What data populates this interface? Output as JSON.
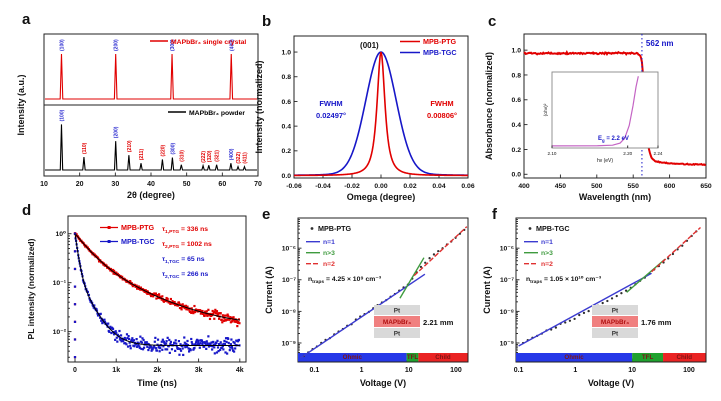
{
  "figure": {
    "background": "#ffffff",
    "accent_red": "#e10000",
    "accent_blue": "#1717c8",
    "green": "#2e9b3a",
    "scatter_color": "#303030"
  },
  "chart_data": [
    {
      "id": "a",
      "panel_label": "a",
      "type": "line",
      "subtype": "xrd",
      "xlabel": "2θ (degree)",
      "ylabel": "Intensity (a.u.)",
      "xlim": [
        10,
        70
      ],
      "xticks": [
        10,
        20,
        30,
        40,
        50,
        60,
        70
      ],
      "series": [
        {
          "name": "MAPbBr₃ single crystal",
          "color": "#e10000",
          "label_color": "#2a2ad0",
          "peaks": [
            {
              "x": 14.9,
              "h": 1.0,
              "label": "(100)"
            },
            {
              "x": 30.1,
              "h": 1.0,
              "label": "(200)"
            },
            {
              "x": 45.9,
              "h": 1.0,
              "label": "(300)"
            },
            {
              "x": 62.5,
              "h": 1.0,
              "label": "(400)"
            }
          ]
        },
        {
          "name": "MAPbBr₃ powder",
          "color": "#000000",
          "peaks": [
            {
              "x": 14.9,
              "h": 0.95,
              "label": "(100)",
              "lc": "#2a2ad0"
            },
            {
              "x": 21.2,
              "h": 0.27,
              "label": "(110)",
              "lc": "#e10000"
            },
            {
              "x": 30.1,
              "h": 0.6,
              "label": "(200)",
              "lc": "#2a2ad0"
            },
            {
              "x": 33.8,
              "h": 0.31,
              "label": "(210)",
              "lc": "#e10000"
            },
            {
              "x": 37.2,
              "h": 0.14,
              "label": "(211)",
              "lc": "#e10000"
            },
            {
              "x": 43.2,
              "h": 0.22,
              "label": "(220)",
              "lc": "#e10000"
            },
            {
              "x": 46.0,
              "h": 0.26,
              "label": "(300)",
              "lc": "#2a2ad0"
            },
            {
              "x": 48.5,
              "h": 0.11,
              "label": "(310)",
              "lc": "#e10000"
            },
            {
              "x": 54.6,
              "h": 0.09,
              "label": "(222)",
              "lc": "#e10000"
            },
            {
              "x": 56.2,
              "h": 0.1,
              "label": "(320)",
              "lc": "#e10000"
            },
            {
              "x": 58.4,
              "h": 0.11,
              "label": "(321)",
              "lc": "#e10000"
            },
            {
              "x": 62.4,
              "h": 0.14,
              "label": "(400)",
              "lc": "#2a2ad0"
            },
            {
              "x": 64.4,
              "h": 0.07,
              "label": "(322)",
              "lc": "#e10000"
            },
            {
              "x": 66.2,
              "h": 0.07,
              "label": "(411)",
              "lc": "#e10000"
            }
          ]
        }
      ]
    },
    {
      "id": "b",
      "panel_label": "b",
      "type": "line",
      "subtype": "rocking",
      "xlabel": "Omega (degree)",
      "ylabel": "Intensity (normalized)",
      "xlim": [
        -0.06,
        0.06
      ],
      "xticks": [
        -0.06,
        -0.04,
        -0.02,
        0.0,
        0.02,
        0.04,
        0.06
      ],
      "xtick_labels": [
        "-0.06",
        "-0.04",
        "-0.02",
        "0.00",
        "0.02",
        "0.04",
        "0.06"
      ],
      "yticks": [
        0.0,
        0.2,
        0.4,
        0.6,
        0.8,
        1.0
      ],
      "ytick_labels": [
        "0.0",
        "0.2",
        "0.4",
        "0.6",
        "0.8",
        "1.0"
      ],
      "peak_label": "(001)",
      "series": [
        {
          "name": "MPB-TGC",
          "color": "#1717c8",
          "fwhm": 0.02497,
          "shape": "gauss"
        },
        {
          "name": "MPB-PTG",
          "color": "#e10000",
          "fwhm": 0.00806,
          "shape": "lorentz"
        }
      ],
      "legend_order": [
        "MPB-PTG",
        "MPB-TGC"
      ],
      "legend_colors": [
        "#e10000",
        "#1717c8"
      ],
      "annotations": [
        {
          "lines": [
            "FWHM",
            "0.02497°"
          ],
          "color": "#1717c8",
          "side": "left"
        },
        {
          "lines": [
            "FWHM",
            "0.00806°"
          ],
          "color": "#e10000",
          "side": "right"
        }
      ]
    },
    {
      "id": "c",
      "panel_label": "c",
      "type": "line",
      "subtype": "absorbance",
      "xlabel": "Wavelength (nm)",
      "ylabel": "Absorbance (normalized)",
      "xlim": [
        400,
        650
      ],
      "xticks": [
        400,
        450,
        500,
        550,
        600,
        650
      ],
      "yticks": [
        0.0,
        0.2,
        0.4,
        0.6,
        0.8,
        1.0
      ],
      "ytick_labels": [
        "0.0",
        "0.2",
        "0.4",
        "0.6",
        "0.8",
        "1.0"
      ],
      "curve_color": "#e10000",
      "edge_nm": 562,
      "edge_label": "562 nm",
      "edge_label_color": "#1717c8",
      "plateau": 0.975,
      "floor": 0.08,
      "profile": [
        [
          400,
          0.975
        ],
        [
          556,
          0.975
        ],
        [
          560,
          0.955
        ],
        [
          562,
          0.9
        ],
        [
          564,
          0.76
        ],
        [
          566,
          0.56
        ],
        [
          568,
          0.39
        ],
        [
          570,
          0.27
        ],
        [
          572,
          0.19
        ],
        [
          575,
          0.135
        ],
        [
          580,
          0.105
        ],
        [
          590,
          0.092
        ],
        [
          605,
          0.086
        ],
        [
          625,
          0.081
        ],
        [
          650,
          0.078
        ]
      ],
      "inset": {
        "xlabel": "hν (eV)",
        "ylabel": "(αhν)²",
        "xticks": [
          2.1,
          2.2,
          2.24
        ],
        "xtick_labels": [
          "2.10",
          "2.20",
          "2.24"
        ],
        "xlim": [
          2.1,
          2.24
        ],
        "curve_color": "#c464c4",
        "profile": [
          [
            2.1,
            0.01
          ],
          [
            2.16,
            0.012
          ],
          [
            2.18,
            0.02
          ],
          [
            2.19,
            0.05
          ],
          [
            2.196,
            0.12
          ],
          [
            2.202,
            0.3
          ],
          [
            2.207,
            0.58
          ],
          [
            2.211,
            0.85
          ],
          [
            2.214,
            1.0
          ]
        ],
        "annotation_parts": [
          {
            "t": "E"
          },
          {
            "t": "g",
            "sub": true
          },
          {
            "t": " = 2.2 eV"
          }
        ],
        "annotation_color": "#1717c8"
      }
    },
    {
      "id": "d",
      "panel_label": "d",
      "type": "scatter",
      "subtype": "trpl",
      "xlabel": "Time (ns)",
      "ylabel": "PL intensity (normalized)",
      "xlim": [
        -170,
        4150
      ],
      "xticks": [
        0,
        1000,
        2000,
        3000,
        4000
      ],
      "xtick_labels": [
        "0",
        "1k",
        "2k",
        "3k",
        "4k"
      ],
      "yticks": [
        1,
        0.1,
        0.01
      ],
      "ytick_labels": [
        "10⁰",
        "10⁻¹",
        "10⁻²"
      ],
      "ylog": true,
      "series": [
        {
          "name": "MPB-PTG",
          "color": "#e10000",
          "tau1": 336,
          "tau2": 1002,
          "a1": 0.72,
          "a2": 0.28,
          "floor": 0.012,
          "seed": 7
        },
        {
          "name": "MPB-TGC",
          "color": "#1717c8",
          "tau1": 65,
          "tau2": 266,
          "a1": 0.85,
          "a2": 0.15,
          "floor": 0.0052,
          "seed": 13
        }
      ],
      "fit_color": "#000000",
      "annotations": [
        {
          "parts": [
            {
              "t": "τ"
            },
            {
              "t": "1,PTG",
              "sub": true
            },
            {
              "t": " = 336 ns"
            }
          ],
          "color": "#e10000"
        },
        {
          "parts": [
            {
              "t": "τ"
            },
            {
              "t": "2,PTG",
              "sub": true
            },
            {
              "t": " = 1002 ns"
            }
          ],
          "color": "#e10000"
        },
        {
          "parts": [
            {
              "t": "τ"
            },
            {
              "t": "1,TGC",
              "sub": true
            },
            {
              "t": " = 65 ns"
            }
          ],
          "color": "#1717c8"
        },
        {
          "parts": [
            {
              "t": "τ"
            },
            {
              "t": "2,TGC",
              "sub": true
            },
            {
              "t": " = 266 ns"
            }
          ],
          "color": "#1717c8"
        }
      ]
    },
    {
      "id": "e",
      "panel_label": "e",
      "type": "scatter",
      "subtype": "sclc",
      "xlabel": "Voltage (V)",
      "ylabel": "Current (A)",
      "sample_name": "MPB-PTG",
      "xlim": [
        0.045,
        180
      ],
      "xticks": [
        0.1,
        1,
        10,
        100
      ],
      "xtick_labels": [
        "0.1",
        "1",
        "10",
        "100"
      ],
      "ylim": [
        2.5e-10,
        9e-06
      ],
      "yticks": [
        1e-06,
        1e-07,
        1e-08,
        1e-09
      ],
      "ytick_labels": [
        "10⁻⁶",
        "10⁻⁷",
        "10⁻⁸",
        "10⁻⁹"
      ],
      "data_points": [
        [
          0.06,
          4.2e-10
        ],
        [
          0.2,
          1.4e-09
        ],
        [
          0.5,
          3.5e-09
        ],
        [
          1,
          7e-09
        ],
        [
          2,
          1.4e-08
        ],
        [
          4,
          2.8e-08
        ],
        [
          8,
          5.8e-08
        ],
        [
          10,
          7.5e-08
        ],
        [
          13,
          1.3e-07
        ],
        [
          16,
          2.2e-07
        ],
        [
          25,
          4.2e-07
        ],
        [
          40,
          7.5e-07
        ],
        [
          70,
          1.4e-06
        ],
        [
          100,
          2.2e-06
        ],
        [
          150,
          3.8e-06
        ]
      ],
      "fit_lines": [
        {
          "name": "n=1",
          "color": "#3b3bd0",
          "from": [
            0.05,
            3.3e-10
          ],
          "to": [
            22,
            1.5e-07
          ],
          "dash": ""
        },
        {
          "name": "n>3",
          "color": "#3f9b3f",
          "from": [
            6.5,
            2.6e-08
          ],
          "to": [
            21,
            5e-07
          ],
          "dash": ""
        },
        {
          "name": "n=2",
          "color": "#e03030",
          "from": [
            13,
            1.35e-07
          ],
          "to": [
            170,
            4.8e-06
          ],
          "dash": "5,2"
        }
      ],
      "ntraps_parts": [
        {
          "t": "n"
        },
        {
          "t": "traps",
          "sub": true
        },
        {
          "t": " = 4.25 × 10⁹ cm⁻³"
        }
      ],
      "stack": {
        "top": "Pt",
        "mid": "MAPbBr₃",
        "bottom": "Pt",
        "thickness": "2.21 mm"
      },
      "regions": [
        {
          "name": "Ohmic",
          "to_v": 9,
          "color": "#2638e8"
        },
        {
          "name": "TFL",
          "to_v": 16,
          "color": "#1fa12e"
        },
        {
          "name": "Child",
          "to_v": 180,
          "color": "#ea2323"
        }
      ],
      "seed": 21
    },
    {
      "id": "f",
      "panel_label": "f",
      "type": "scatter",
      "subtype": "sclc",
      "xlabel": "Voltage (V)",
      "ylabel": "Current (A)",
      "sample_name": "MPB-TGC",
      "xlim": [
        0.09,
        200
      ],
      "xticks": [
        0.1,
        1,
        10,
        100
      ],
      "xtick_labels": [
        "0.1",
        "1",
        "10",
        "100"
      ],
      "ylim": [
        2.5e-10,
        9e-06
      ],
      "yticks": [
        1e-06,
        1e-07,
        1e-08,
        1e-09
      ],
      "ytick_labels": [
        "10⁻⁶",
        "10⁻⁷",
        "10⁻⁸",
        "10⁻⁹"
      ],
      "data_points": [
        [
          0.12,
          1.05e-09
        ],
        [
          0.3,
          2.2e-09
        ],
        [
          0.6,
          4e-09
        ],
        [
          1,
          6.5e-09
        ],
        [
          2,
          1.25e-08
        ],
        [
          4,
          2.4e-08
        ],
        [
          7,
          4e-08
        ],
        [
          10,
          6e-08
        ],
        [
          14,
          9.5e-08
        ],
        [
          20,
          1.6e-07
        ],
        [
          30,
          2.7e-07
        ],
        [
          50,
          6e-07
        ],
        [
          80,
          1.3e-06
        ],
        [
          110,
          2.4e-06
        ],
        [
          135,
          3.4e-06
        ]
      ],
      "fit_lines": [
        {
          "name": "n=1",
          "color": "#3b3bd0",
          "from": [
            0.1,
            8e-10
          ],
          "to": [
            22,
            1.6e-07
          ],
          "dash": ""
        },
        {
          "name": "n>3",
          "color": "#3f9b3f",
          "from": [
            8,
            4e-08
          ],
          "to": [
            38,
            4.5e-07
          ],
          "dash": ""
        },
        {
          "name": "n=2",
          "color": "#e03030",
          "from": [
            22,
            1.8e-07
          ],
          "to": [
            160,
            4.5e-06
          ],
          "dash": "5,2"
        }
      ],
      "ntraps_parts": [
        {
          "t": "n"
        },
        {
          "t": "traps",
          "sub": true
        },
        {
          "t": " = 1.05 × 10¹⁰ cm⁻³"
        }
      ],
      "stack": {
        "top": "Pt",
        "mid": "MAPbBr₃",
        "bottom": "Pt",
        "thickness": "1.76 mm"
      },
      "regions": [
        {
          "name": "Ohmic",
          "to_v": 10,
          "color": "#2638e8"
        },
        {
          "name": "TFL",
          "to_v": 35,
          "color": "#1fa12e"
        },
        {
          "name": "Child",
          "to_v": 200,
          "color": "#ea2323"
        }
      ],
      "seed": 33
    }
  ]
}
